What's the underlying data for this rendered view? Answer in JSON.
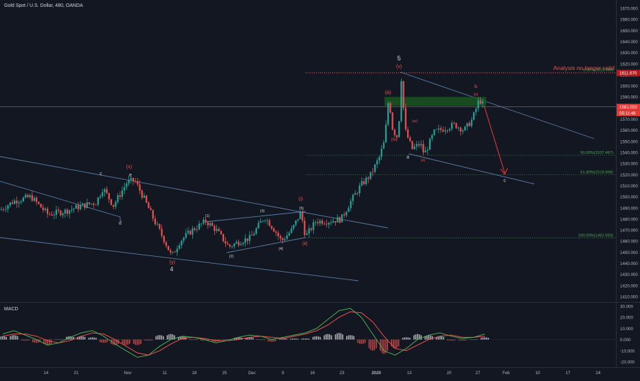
{
  "header": {
    "symbol_title": "Gold Spot / U.S. Dollar, 480, OANDA"
  },
  "colors": {
    "background": "#131722",
    "up_candle": "#26a69a",
    "down_candle": "#ef5350",
    "trendline": "#5b7fa6",
    "level_line": "#4caf50",
    "wave_label_red": "#ef5350",
    "wave_label_white": "#d1d4dc",
    "target_arrow": "#e53935",
    "resistance_zone": "#1b5e20",
    "macd_line": "#4caf50",
    "signal_line": "#ef5350"
  },
  "chart_data": [
    {
      "type": "candlestick",
      "title": "Gold Spot / U.S. Dollar, 480, OANDA",
      "x_tick_labels": [
        "14",
        "21",
        "Nov",
        "11",
        "18",
        "25",
        "Dec",
        "9",
        "16",
        "23",
        "2020",
        "13",
        "20",
        "27",
        "Feb",
        "10",
        "17",
        "24"
      ],
      "y_tick_labels": [
        "1670.000",
        "1660.000",
        "1650.000",
        "1640.000",
        "1630.000",
        "1620.000",
        "1610.000",
        "1600.000",
        "1590.000",
        "1580.000",
        "1570.000",
        "1560.000",
        "1550.000",
        "1540.000",
        "1530.000",
        "1520.000",
        "1510.000",
        "1500.000",
        "1490.000",
        "1480.000",
        "1470.000",
        "1460.000",
        "1450.000",
        "1440.000",
        "1430.000",
        "1420.000",
        "1410.000"
      ],
      "ylim": [
        1405,
        1675
      ],
      "price_path": [
        {
          "label": "e",
          "price": 1515
        },
        {
          "label": "(y)",
          "price": 1446
        },
        {
          "label": "(1)",
          "price": 1478
        },
        {
          "label": "(2)",
          "price": 1455
        },
        {
          "label": "(3)",
          "price": 1482
        },
        {
          "label": "(4)",
          "price": 1460
        },
        {
          "label": "(i)",
          "price": 1486
        },
        {
          "label": "(ii)",
          "price": 1464
        },
        {
          "label": "(iii)",
          "price": 1590
        },
        {
          "label": "(iv)",
          "price": 1553
        },
        {
          "label": "(v)",
          "price": 1611.98
        },
        {
          "label": "a",
          "price": 1538
        },
        {
          "label": "b",
          "price": 1588
        }
      ],
      "levels": [
        {
          "label": "Analysis no longer valid",
          "price": 1611.67
        },
        {
          "label": "0.00%(1611.980)",
          "price": 1611.98
        },
        {
          "label": "50.00%(1537.487)",
          "price": 1537.487
        },
        {
          "label": "61.80%(1519.906)",
          "price": 1519.906
        },
        {
          "label": "100.00%(1462.993)",
          "price": 1462.993
        }
      ],
      "price_badges": {
        "invalid_level": "1611.670",
        "last_price": "1581.032",
        "countdown": "05:11:48"
      },
      "wave_labels": {
        "red": [
          "(x)",
          "(y)",
          "(i)",
          "(ii)",
          "(iii)",
          "(v)",
          "b",
          "(iv)",
          "(w)",
          "(x)",
          "(y)"
        ],
        "white": [
          "c",
          "e",
          "d",
          "4",
          "5",
          "(1)",
          "(2)",
          "(3)",
          "(4)",
          "(5)",
          "a",
          "c"
        ]
      },
      "annotation": "Analysis no longer valid"
    },
    {
      "type": "macd",
      "title": "MACD",
      "y_tick_labels": [
        "30.000",
        "20.000",
        "10.000",
        "0.000",
        "-10.000",
        "-20.000"
      ],
      "ylim": [
        -25,
        32
      ],
      "series": [
        {
          "name": "MACD",
          "values": [
            5,
            8,
            4,
            0,
            -5,
            -3,
            2,
            6,
            8,
            3,
            -4,
            -10,
            -16,
            -14,
            -6,
            0,
            3,
            2,
            0,
            -3,
            -1,
            2,
            4,
            3,
            0,
            2,
            4,
            6,
            10,
            18,
            26,
            28,
            20,
            5,
            -10,
            -14,
            -8,
            0,
            4,
            6,
            3,
            1,
            2,
            5
          ]
        },
        {
          "name": "Signal",
          "values": [
            3,
            5,
            5,
            3,
            -1,
            -3,
            -1,
            3,
            6,
            5,
            0,
            -6,
            -12,
            -14,
            -10,
            -4,
            1,
            2,
            1,
            -1,
            -1,
            0,
            2,
            3,
            2,
            1,
            3,
            5,
            8,
            13,
            20,
            25,
            24,
            16,
            3,
            -8,
            -10,
            -5,
            0,
            3,
            4,
            2,
            2,
            3
          ]
        },
        {
          "name": "Histogram",
          "values": [
            3,
            4,
            -1,
            -3,
            -5,
            0,
            3,
            3,
            2,
            -3,
            -5,
            -5,
            -5,
            -1,
            4,
            5,
            3,
            0,
            -1,
            -2,
            0,
            2,
            2,
            0,
            -2,
            1,
            1,
            1,
            3,
            5,
            6,
            4,
            -4,
            -10,
            -13,
            -8,
            2,
            5,
            4,
            3,
            -1,
            -1,
            0,
            2
          ]
        }
      ]
    }
  ],
  "macd_panel": {
    "title": "MACD"
  }
}
